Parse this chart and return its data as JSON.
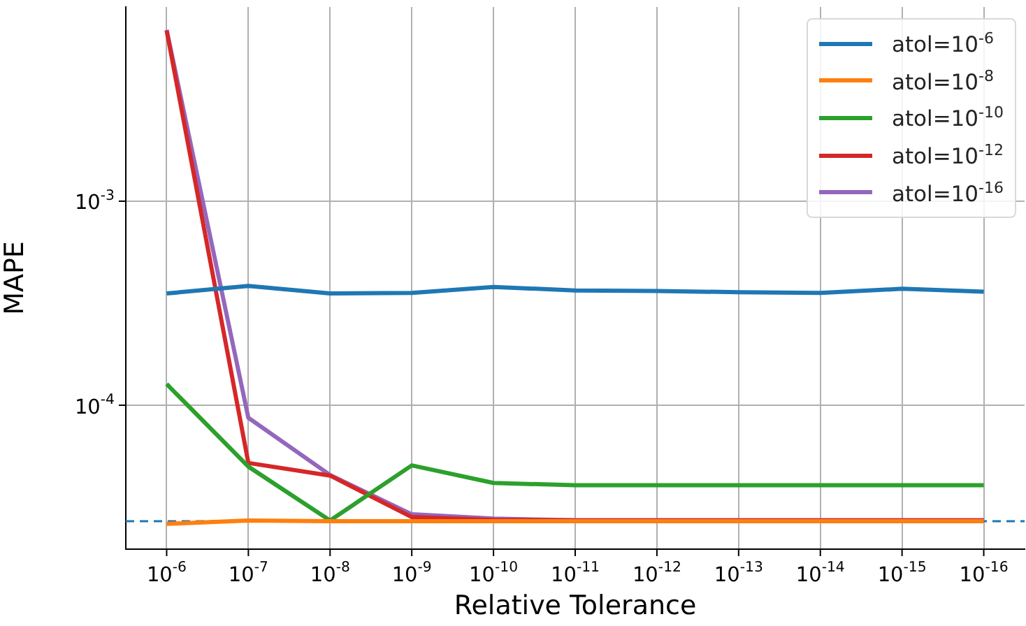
{
  "chart_data": {
    "type": "line",
    "xlabel": "Relative Tolerance",
    "ylabel": "MAPE",
    "categories": [
      "10$^{-6}$",
      "10$^{-7}$",
      "10$^{-8}$",
      "10$^{-9}$",
      "10$^{-10}$",
      "10$^{-11}$",
      "10$^{-12}$",
      "10$^{-13}$",
      "10$^{-14}$",
      "10$^{-15}$",
      "10$^{-16}$"
    ],
    "series": [
      {
        "name": "atol=10$^{-6}$",
        "color": "#1f77b4",
        "values": [
          0.000353,
          0.000384,
          0.000353,
          0.000355,
          0.00038,
          0.000365,
          0.000363,
          0.000358,
          0.000355,
          0.000372,
          0.00036
        ]
      },
      {
        "name": "atol=10$^{-8}$",
        "color": "#ff7f0e",
        "values": [
          2.62e-05,
          2.72e-05,
          2.7e-05,
          2.7e-05,
          2.7e-05,
          2.7e-05,
          2.7e-05,
          2.7e-05,
          2.7e-05,
          2.7e-05,
          2.7e-05
        ]
      },
      {
        "name": "atol=10$^{-10}$",
        "color": "#2ca02c",
        "values": [
          0.000127,
          5e-05,
          2.72e-05,
          5.07e-05,
          4.16e-05,
          4.05e-05,
          4.05e-05,
          4.05e-05,
          4.05e-05,
          4.05e-05,
          4.05e-05
        ]
      },
      {
        "name": "atol=10$^{-12}$",
        "color": "#d62728",
        "values": [
          0.00686,
          5.21e-05,
          4.52e-05,
          2.83e-05,
          2.74e-05,
          2.72e-05,
          2.72e-05,
          2.72e-05,
          2.72e-05,
          2.72e-05,
          2.72e-05
        ]
      },
      {
        "name": "atol=10$^{-16}$",
        "color": "#9467bd",
        "values": [
          0.0069,
          8.67e-05,
          4.55e-05,
          2.92e-05,
          2.78e-05,
          2.73e-05,
          2.73e-05,
          2.73e-05,
          2.73e-05,
          2.73e-05,
          2.73e-05
        ]
      }
    ],
    "log": "y",
    "ylim": [
      1.97e-05,
      0.00895
    ],
    "yticks": [
      {
        "value": 0.0001,
        "label": "10$^{-4}$"
      },
      {
        "value": 0.001,
        "label": "10$^{-3}$"
      }
    ],
    "ref_lines": [
      {
        "axis": "y",
        "value": 2.7e-05,
        "color": "#1f77b4",
        "line_style": "dashed"
      }
    ],
    "grid": true,
    "legend": "top right",
    "marker": "none",
    "line_style": "solid"
  }
}
